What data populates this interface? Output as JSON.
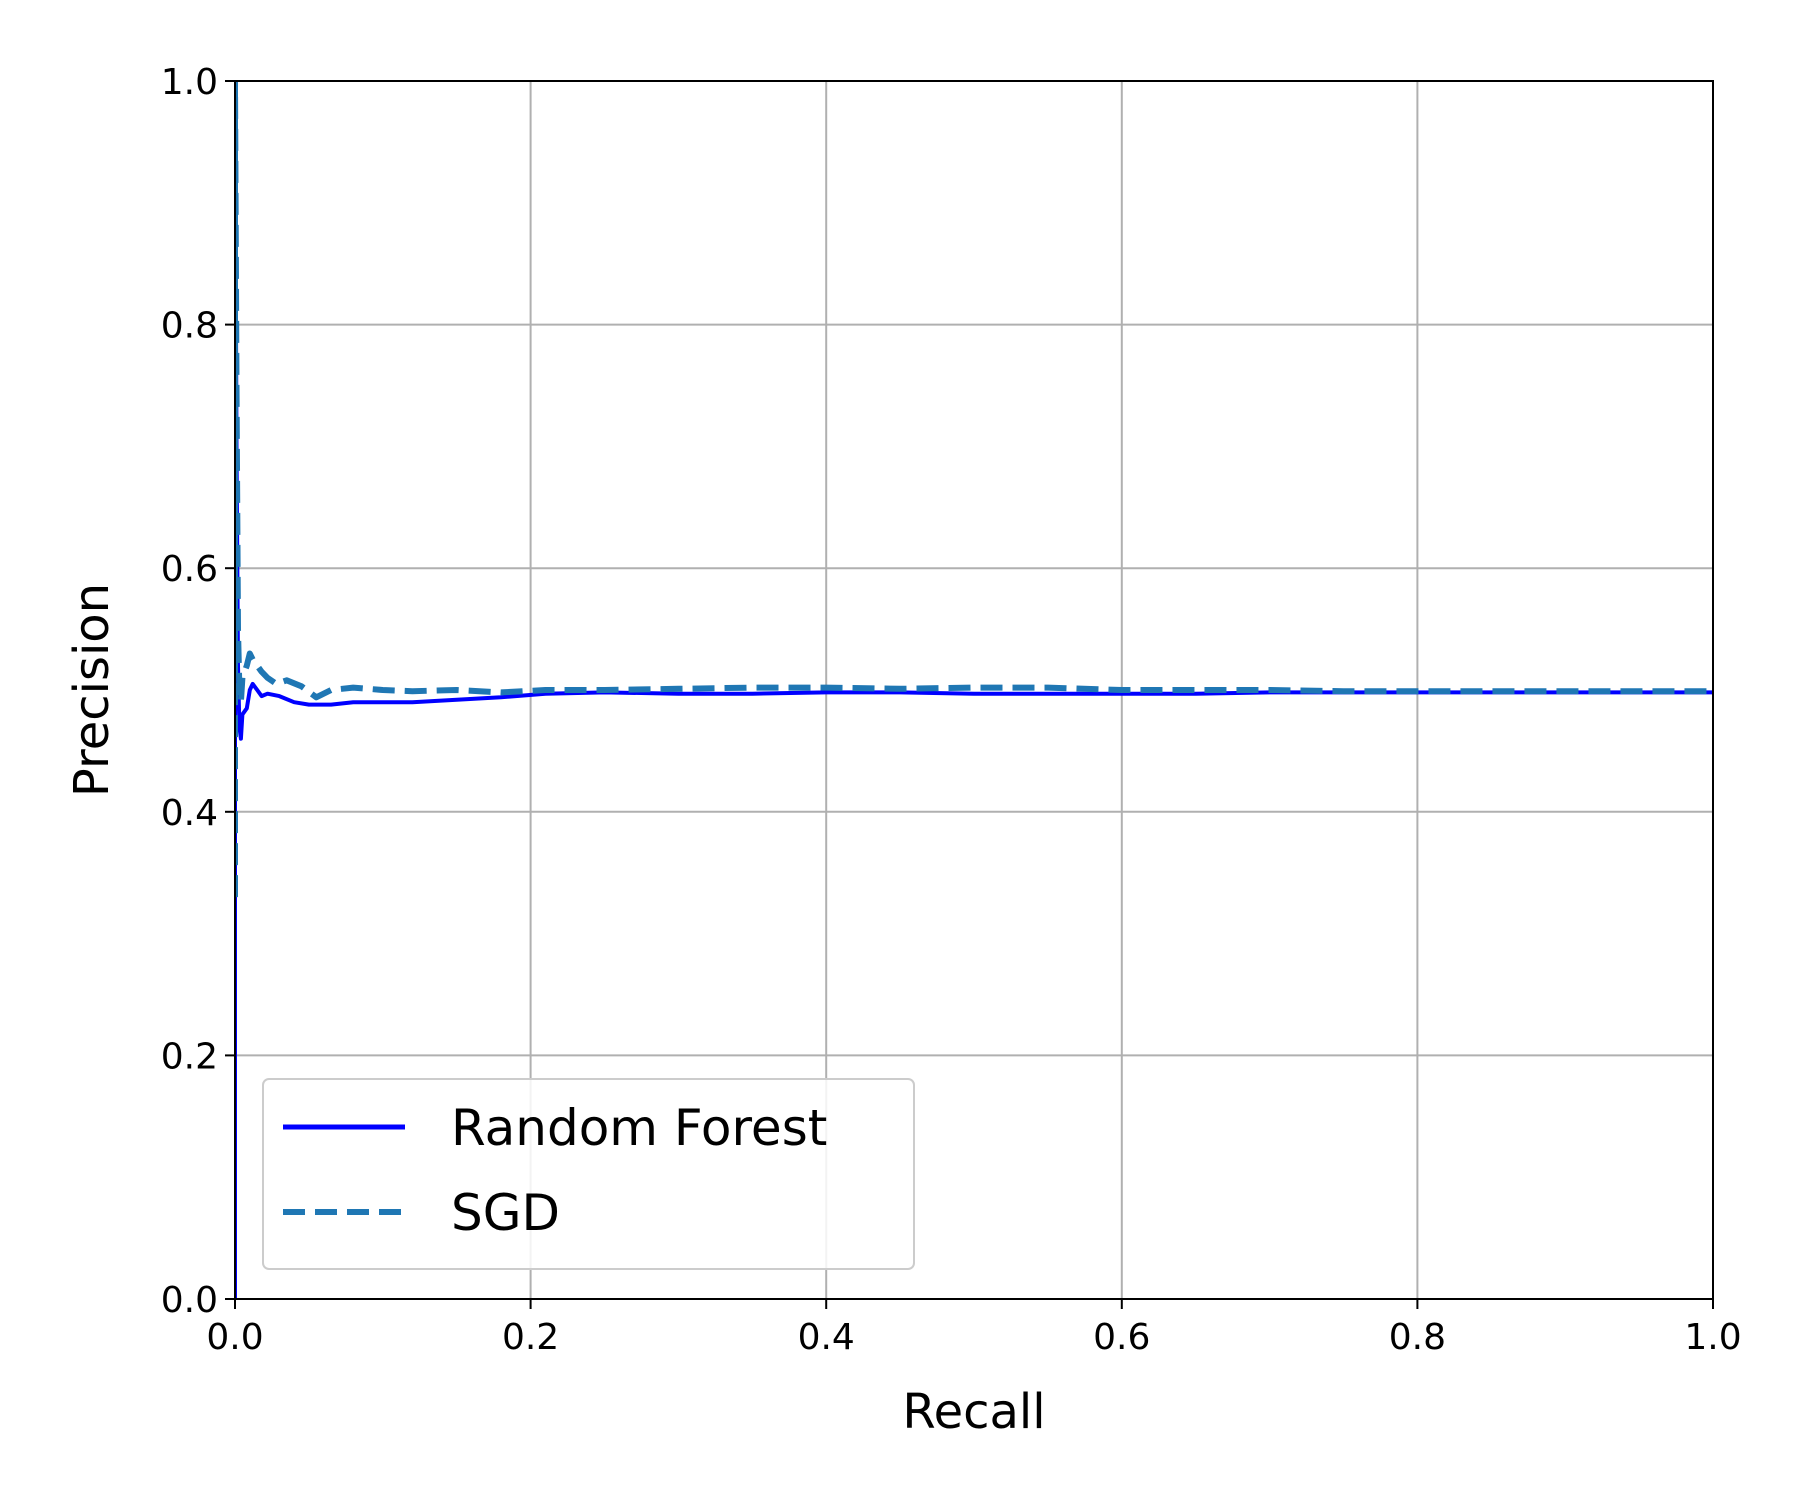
{
  "chart_data": {
    "type": "line",
    "title": "",
    "xlabel": "Recall",
    "ylabel": "Precision",
    "xlim": [
      0.0,
      1.0
    ],
    "ylim": [
      0.0,
      1.0
    ],
    "xticks": [
      "0.0",
      "0.2",
      "0.4",
      "0.6",
      "0.8",
      "1.0"
    ],
    "yticks": [
      "0.0",
      "0.2",
      "0.4",
      "0.6",
      "0.8",
      "1.0"
    ],
    "grid": true,
    "legend_position": "lower-left",
    "series": [
      {
        "name": "Random Forest",
        "color": "#0000ff",
        "style": "solid",
        "x": [
          0.0,
          0.0,
          0.001,
          0.002,
          0.003,
          0.004,
          0.005,
          0.008,
          0.01,
          0.012,
          0.015,
          0.018,
          0.022,
          0.03,
          0.04,
          0.05,
          0.065,
          0.08,
          0.1,
          0.12,
          0.15,
          0.18,
          0.21,
          0.25,
          0.3,
          0.35,
          0.4,
          0.45,
          0.5,
          0.55,
          0.6,
          0.65,
          0.7,
          0.75,
          0.8,
          0.85,
          0.9,
          0.95,
          1.0
        ],
        "y": [
          0.0,
          1.0,
          0.7,
          0.52,
          0.47,
          0.46,
          0.48,
          0.485,
          0.5,
          0.505,
          0.5,
          0.495,
          0.497,
          0.495,
          0.49,
          0.488,
          0.488,
          0.49,
          0.49,
          0.49,
          0.492,
          0.494,
          0.497,
          0.498,
          0.497,
          0.497,
          0.498,
          0.498,
          0.497,
          0.497,
          0.497,
          0.497,
          0.498,
          0.498,
          0.498,
          0.498,
          0.498,
          0.498,
          0.498
        ]
      },
      {
        "name": "SGD",
        "color": "#1f77b4",
        "style": "dashed",
        "x": [
          0.0,
          0.0,
          0.001,
          0.002,
          0.003,
          0.004,
          0.005,
          0.008,
          0.01,
          0.012,
          0.015,
          0.018,
          0.022,
          0.028,
          0.035,
          0.045,
          0.055,
          0.065,
          0.08,
          0.1,
          0.12,
          0.15,
          0.18,
          0.21,
          0.25,
          0.3,
          0.35,
          0.4,
          0.45,
          0.5,
          0.55,
          0.6,
          0.65,
          0.7,
          0.75,
          0.8,
          0.85,
          0.9,
          0.95,
          1.0
        ],
        "y": [
          0.33,
          1.0,
          0.75,
          0.55,
          0.5,
          0.49,
          0.51,
          0.52,
          0.53,
          0.525,
          0.52,
          0.515,
          0.51,
          0.505,
          0.508,
          0.503,
          0.494,
          0.5,
          0.502,
          0.5,
          0.499,
          0.5,
          0.498,
          0.5,
          0.5,
          0.501,
          0.502,
          0.502,
          0.501,
          0.502,
          0.502,
          0.5,
          0.5,
          0.5,
          0.499,
          0.499,
          0.499,
          0.499,
          0.499,
          0.499
        ]
      }
    ]
  }
}
